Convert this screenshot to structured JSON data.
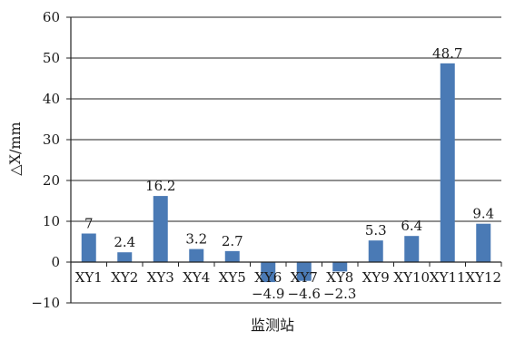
{
  "chart_data": {
    "type": "bar",
    "categories": [
      "XY1",
      "XY2",
      "XY3",
      "XY4",
      "XY5",
      "XY6",
      "XY7",
      "XY8",
      "XY9",
      "XY10",
      "XY11",
      "XY12"
    ],
    "values": [
      7,
      2.4,
      16.2,
      3.2,
      2.7,
      -4.9,
      -4.6,
      -2.3,
      5.3,
      6.4,
      48.7,
      9.4
    ],
    "value_labels": [
      "7",
      "2.4",
      "16.2",
      "3.2",
      "2.7",
      "−4.9",
      "−4.6",
      "−2.3",
      "5.3",
      "6.4",
      "48.7",
      "9.4"
    ],
    "title": "",
    "xlabel": "监测站",
    "ylabel": "△X/mm",
    "ylim": [
      -10,
      60
    ],
    "yticks": [
      -10,
      0,
      10,
      20,
      30,
      40,
      50,
      60
    ],
    "ytick_labels": [
      "−10",
      "0",
      "10",
      "20",
      "30",
      "40",
      "50",
      "60"
    ],
    "grid": true,
    "colors": {
      "bar": "#4a7ab5",
      "grid": "#222222",
      "axis": "#222222"
    }
  }
}
